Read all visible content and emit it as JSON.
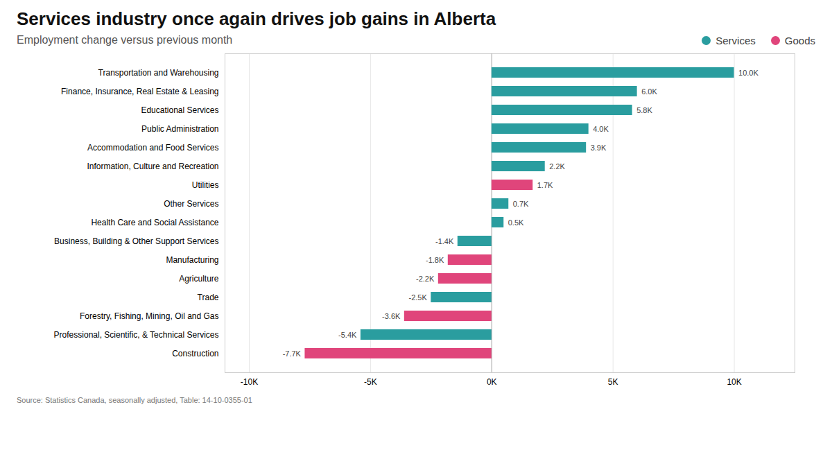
{
  "chart_data": {
    "type": "bar",
    "orientation": "horizontal",
    "title": "Services industry once again drives job gains in Alberta",
    "subtitle": "Employment change versus previous month",
    "annotations": [
      "Source: Statistics Canada, seasonally adjusted, Table: 14-10-0355-01"
    ],
    "categories": [
      "Transportation and Warehousing",
      "Finance, Insurance, Real Estate & Leasing",
      "Educational Services",
      "Public Administration",
      "Accommodation and Food Services",
      "Information, Culture and Recreation",
      "Utilities",
      "Other Services",
      "Health Care and Social Assistance",
      "Business, Building & Other Support Services",
      "Manufacturing",
      "Agriculture",
      "Trade",
      "Forestry, Fishing, Mining, Oil and Gas",
      "Professional, Scientific, & Technical Services",
      "Construction"
    ],
    "series": [
      {
        "name": "Services",
        "color": "#2a9d9f",
        "values": [
          10000,
          6000,
          5800,
          4000,
          3900,
          2200,
          null,
          700,
          500,
          -1400,
          null,
          null,
          -2500,
          null,
          -5400,
          null
        ],
        "value_labels": [
          "10.0K",
          "6.0K",
          "5.8K",
          "4.0K",
          "3.9K",
          "2.2K",
          null,
          "0.7K",
          "0.5K",
          "-1.4K",
          null,
          null,
          "-2.5K",
          null,
          "-5.4K",
          null
        ]
      },
      {
        "name": "Goods",
        "color": "#e0457b",
        "values": [
          null,
          null,
          null,
          null,
          null,
          null,
          1700,
          null,
          null,
          null,
          -1800,
          -2200,
          null,
          -3600,
          null,
          -7700
        ],
        "value_labels": [
          null,
          null,
          null,
          null,
          null,
          null,
          "1.7K",
          null,
          null,
          null,
          "-1.8K",
          "-2.2K",
          null,
          "-3.6K",
          null,
          "-7.7K"
        ]
      }
    ],
    "xlim": [
      -11000,
      12500
    ],
    "xticks": [
      {
        "value": -10000,
        "label": "-10K"
      },
      {
        "value": -5000,
        "label": "-5K"
      },
      {
        "value": 0,
        "label": "0K"
      },
      {
        "value": 5000,
        "label": "5K"
      },
      {
        "value": 10000,
        "label": "10K"
      }
    ],
    "grid": true,
    "legend": "upper right",
    "data_labels": true
  }
}
